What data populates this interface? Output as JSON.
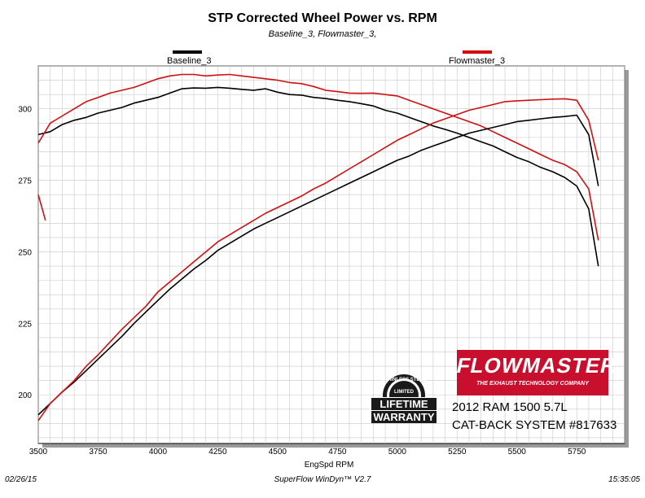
{
  "title": "STP Corrected Wheel Power vs. RPM",
  "subtitle": "Baseline_3, Flowmaster_3,",
  "footer": {
    "date": "02/26/15",
    "software": "SuperFlow WinDyn™ V2.7",
    "time": "15:35:05"
  },
  "branding": {
    "logo_text": "FLOWMASTER",
    "logo_tagline": "THE EXHAUST TECHNOLOGY COMPANY",
    "badge_top": "STAINLESS STEEL",
    "badge_mid": "LIMITED",
    "badge_line1": "LIFETIME",
    "badge_line2": "WARRANTY",
    "vehicle_line1": "2012 RAM 1500 5.7L",
    "vehicle_line2": "CAT-BACK SYSTEM #817633"
  },
  "colors": {
    "baseline": "#000000",
    "flowmaster": "#d01010",
    "grid": "#c8c8c8",
    "logo_red": "#c8102e"
  },
  "chart_data": {
    "type": "line",
    "title": "STP Corrected Wheel Power vs. RPM",
    "subtitle": "Baseline_3, Flowmaster_3,",
    "xlabel": "EngSpd  RPM",
    "ylabel": "",
    "xlim": [
      3500,
      5950
    ],
    "ylim": [
      183,
      315
    ],
    "xticks": [
      3500,
      3750,
      4000,
      4250,
      4500,
      4750,
      5000,
      5250,
      5500,
      5750
    ],
    "yticks": [
      200,
      225,
      250,
      275,
      300
    ],
    "grid": true,
    "legend_position": "top",
    "series": [
      {
        "name": "Baseline_3",
        "group": "power",
        "color": "#000000",
        "x": [
          3500,
          3550,
          3600,
          3650,
          3700,
          3750,
          3800,
          3850,
          3900,
          3950,
          4000,
          4050,
          4100,
          4150,
          4200,
          4250,
          4300,
          4350,
          4400,
          4450,
          4500,
          4550,
          4600,
          4650,
          4700,
          4750,
          4800,
          4850,
          4900,
          4950,
          5000,
          5050,
          5100,
          5150,
          5200,
          5250,
          5300,
          5350,
          5400,
          5450,
          5500,
          5550,
          5600,
          5650,
          5700,
          5750,
          5800,
          5840
        ],
        "y": [
          291,
          292,
          294.5,
          296,
          297,
          298.5,
          299.5,
          300.5,
          302,
          303,
          304,
          305.5,
          307,
          307.3,
          307.2,
          307.5,
          307.2,
          306.8,
          306.5,
          307,
          305.8,
          305,
          304.8,
          304,
          303.6,
          303,
          302.5,
          301.8,
          301,
          299.5,
          298.5,
          297,
          295.5,
          294,
          292.8,
          291.5,
          290,
          288.5,
          287,
          285,
          283,
          281.5,
          279.5,
          278,
          276,
          273,
          265,
          245
        ]
      },
      {
        "name": "Flowmaster_3",
        "group": "power",
        "color": "#d01010",
        "x": [
          3500,
          3550,
          3600,
          3650,
          3700,
          3750,
          3800,
          3850,
          3900,
          3950,
          4000,
          4050,
          4100,
          4150,
          4200,
          4250,
          4300,
          4350,
          4400,
          4450,
          4500,
          4550,
          4600,
          4650,
          4700,
          4750,
          4800,
          4850,
          4900,
          4950,
          5000,
          5050,
          5100,
          5150,
          5200,
          5250,
          5300,
          5350,
          5400,
          5450,
          5500,
          5550,
          5600,
          5650,
          5700,
          5750,
          5800,
          5840
        ],
        "y": [
          288,
          295,
          297.5,
          300,
          302.5,
          304,
          305.5,
          306.5,
          307.5,
          309,
          310.5,
          311.5,
          312,
          312,
          311.5,
          311.8,
          312,
          311.5,
          311,
          310.5,
          310,
          309.2,
          308.8,
          307.8,
          306.5,
          306,
          305.5,
          305.4,
          305.5,
          305,
          304.5,
          303,
          301.5,
          300,
          298.5,
          297,
          295.5,
          294,
          292,
          290,
          288,
          286,
          284,
          282,
          280.5,
          278,
          272,
          254
        ]
      },
      {
        "name": "Baseline_3",
        "group": "torque",
        "color": "#000000",
        "x": [
          3500,
          3550,
          3600,
          3650,
          3700,
          3750,
          3800,
          3850,
          3900,
          3950,
          4000,
          4050,
          4100,
          4150,
          4200,
          4250,
          4300,
          4350,
          4400,
          4450,
          4500,
          4550,
          4600,
          4650,
          4700,
          4750,
          4800,
          4850,
          4900,
          4950,
          5000,
          5050,
          5100,
          5150,
          5200,
          5250,
          5300,
          5350,
          5400,
          5450,
          5500,
          5550,
          5600,
          5650,
          5700,
          5750,
          5800,
          5840
        ],
        "y": [
          193,
          197,
          201,
          204.5,
          208.5,
          212.5,
          216.5,
          220.5,
          225,
          229,
          233,
          237,
          240.5,
          244,
          247,
          250.5,
          253,
          255.5,
          258,
          260,
          262,
          264,
          266,
          268,
          270,
          272,
          274,
          276,
          278,
          280,
          282,
          283.5,
          285.5,
          287,
          288.5,
          290,
          291.5,
          292.5,
          293.5,
          294.5,
          295.5,
          296,
          296.5,
          297,
          297.3,
          297.8,
          291,
          273
        ]
      },
      {
        "name": "Flowmaster_3",
        "group": "torque",
        "color": "#d01010",
        "x": [
          3500,
          3550,
          3600,
          3650,
          3700,
          3750,
          3800,
          3850,
          3900,
          3950,
          4000,
          4050,
          4100,
          4150,
          4200,
          4250,
          4300,
          4350,
          4400,
          4450,
          4500,
          4550,
          4600,
          4650,
          4700,
          4750,
          4800,
          4850,
          4900,
          4950,
          5000,
          5050,
          5100,
          5150,
          5200,
          5250,
          5300,
          5350,
          5400,
          5450,
          5500,
          5550,
          5600,
          5650,
          5700,
          5750,
          5800,
          5840
        ],
        "y": [
          191,
          197,
          201,
          205,
          210,
          214,
          218.5,
          223,
          227,
          231,
          236,
          239.5,
          243,
          246.5,
          250,
          253.5,
          256,
          258.5,
          261,
          263.5,
          265.5,
          267.5,
          269.5,
          272,
          274,
          276.5,
          279,
          281.5,
          284,
          286.5,
          289,
          291,
          293,
          295,
          296.5,
          298,
          299.5,
          300.5,
          301.5,
          302.5,
          302.8,
          303,
          303.2,
          303.4,
          303.5,
          303,
          296,
          282
        ]
      },
      {
        "name": "Flowmaster_3",
        "group": "fragment",
        "color": "#d01010",
        "x": [
          3500,
          3530
        ],
        "y": [
          270,
          261
        ]
      }
    ]
  }
}
